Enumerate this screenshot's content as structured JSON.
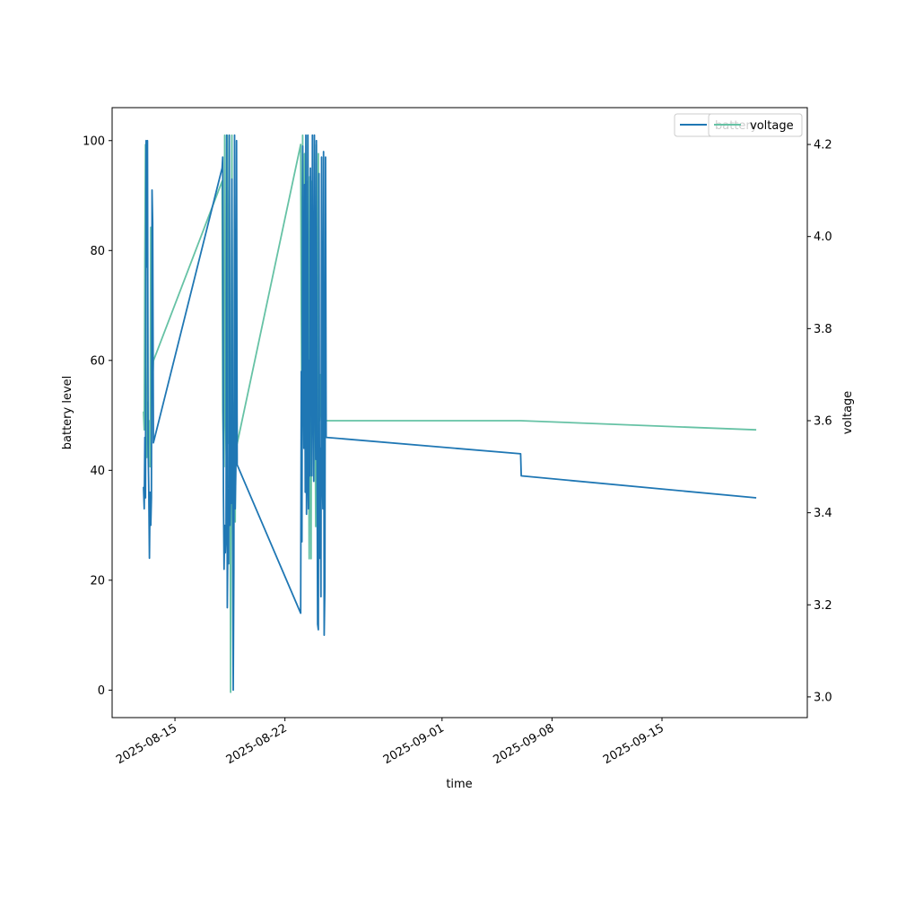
{
  "chart_data": {
    "type": "line",
    "xlabel": "time",
    "ylabel": "battery level",
    "y2label": "voltage",
    "xlim": [
      "2025-08-11T00:00",
      "2025-09-24T06:00"
    ],
    "ylim": [
      -5,
      106
    ],
    "y2lim": [
      2.955,
      4.28
    ],
    "x_ticks": [
      "2025-08-15",
      "2025-08-22",
      "2025-09-01",
      "2025-09-08",
      "2025-09-15"
    ],
    "y_ticks": [
      "0",
      "20",
      "40",
      "60",
      "80",
      "100"
    ],
    "y2_ticks": [
      "3.0",
      "3.2",
      "3.4",
      "3.6",
      "3.8",
      "4.0",
      "4.2"
    ],
    "legend": {
      "placement": "top-right",
      "entries": [
        "battery",
        "voltage"
      ]
    },
    "grid": false,
    "series": [
      {
        "name": "battery",
        "axis": "left",
        "color": "#1f77b4",
        "points": [
          [
            "2025-08-13T00:00",
            37
          ],
          [
            "2025-08-13T01:00",
            33
          ],
          [
            "2025-08-13T02:00",
            46
          ],
          [
            "2025-08-13T03:00",
            35
          ],
          [
            "2025-08-13T04:00",
            100
          ],
          [
            "2025-08-13T05:00",
            77
          ],
          [
            "2025-08-13T06:00",
            100
          ],
          [
            "2025-08-13T07:00",
            45
          ],
          [
            "2025-08-13T08:00",
            36
          ],
          [
            "2025-08-13T09:00",
            24
          ],
          [
            "2025-08-13T10:00",
            36
          ],
          [
            "2025-08-13T11:00",
            30
          ],
          [
            "2025-08-13T12:00",
            35
          ],
          [
            "2025-08-13T13:00",
            91
          ],
          [
            "2025-08-13T14:00",
            85
          ],
          [
            "2025-08-13T15:00",
            45
          ],
          [
            "2025-08-18T00:00",
            95
          ],
          [
            "2025-08-18T01:00",
            97
          ],
          [
            "2025-08-18T02:00",
            36
          ],
          [
            "2025-08-18T03:00",
            22
          ],
          [
            "2025-08-18T04:00",
            30
          ],
          [
            "2025-08-18T05:00",
            25
          ],
          [
            "2025-08-18T06:00",
            29
          ],
          [
            "2025-08-18T07:00",
            101
          ],
          [
            "2025-08-18T08:00",
            15
          ],
          [
            "2025-08-18T09:00",
            31
          ],
          [
            "2025-08-18T10:00",
            23
          ],
          [
            "2025-08-18T11:00",
            101
          ],
          [
            "2025-08-18T12:00",
            30
          ],
          [
            "2025-08-18T13:00",
            37
          ],
          [
            "2025-08-18T14:00",
            34
          ],
          [
            "2025-08-18T15:00",
            93
          ],
          [
            "2025-08-18T16:00",
            40
          ],
          [
            "2025-08-18T17:00",
            0
          ],
          [
            "2025-08-18T18:00",
            22
          ],
          [
            "2025-08-18T19:00",
            101
          ],
          [
            "2025-08-18T20:00",
            33
          ],
          [
            "2025-08-18T21:00",
            40
          ],
          [
            "2025-08-18T22:00",
            100
          ],
          [
            "2025-08-18T23:00",
            41
          ],
          [
            "2025-08-23T00:00",
            14
          ],
          [
            "2025-08-23T01:00",
            58
          ],
          [
            "2025-08-23T02:00",
            27
          ],
          [
            "2025-08-23T03:00",
            99
          ],
          [
            "2025-08-23T04:00",
            62
          ],
          [
            "2025-08-23T05:00",
            44
          ],
          [
            "2025-08-23T06:00",
            92
          ],
          [
            "2025-08-23T07:00",
            36
          ],
          [
            "2025-08-23T08:00",
            101
          ],
          [
            "2025-08-23T09:00",
            32
          ],
          [
            "2025-08-23T10:00",
            40
          ],
          [
            "2025-08-23T11:00",
            101
          ],
          [
            "2025-08-23T12:00",
            33
          ],
          [
            "2025-08-23T13:00",
            60
          ],
          [
            "2025-08-23T14:00",
            39
          ],
          [
            "2025-08-23T15:00",
            95
          ],
          [
            "2025-08-23T16:00",
            73
          ],
          [
            "2025-08-23T17:00",
            39
          ],
          [
            "2025-08-23T18:00",
            101
          ],
          [
            "2025-08-23T19:00",
            60
          ],
          [
            "2025-08-23T20:00",
            38
          ],
          [
            "2025-08-23T21:00",
            101
          ],
          [
            "2025-08-23T22:00",
            61
          ],
          [
            "2025-08-23T23:00",
            42
          ],
          [
            "2025-08-24T00:00",
            100
          ],
          [
            "2025-08-24T01:00",
            45
          ],
          [
            "2025-08-24T02:00",
            12
          ],
          [
            "2025-08-24T03:00",
            11
          ],
          [
            "2025-08-24T04:00",
            94
          ],
          [
            "2025-08-24T05:00",
            24
          ],
          [
            "2025-08-24T06:00",
            44
          ],
          [
            "2025-08-24T07:00",
            17
          ],
          [
            "2025-08-24T08:00",
            97
          ],
          [
            "2025-08-24T09:00",
            40
          ],
          [
            "2025-08-24T10:00",
            33
          ],
          [
            "2025-08-24T11:00",
            98
          ],
          [
            "2025-08-24T12:00",
            10
          ],
          [
            "2025-08-24T13:00",
            19
          ],
          [
            "2025-08-24T14:00",
            97
          ],
          [
            "2025-08-24T15:00",
            46
          ],
          [
            "2025-09-06T00:00",
            43
          ],
          [
            "2025-09-06T01:00",
            39
          ],
          [
            "2025-09-21T00:00",
            35
          ]
        ]
      },
      {
        "name": "voltage",
        "axis": "right",
        "color": "#66c2a5",
        "points": [
          [
            "2025-08-13T00:00",
            3.62
          ],
          [
            "2025-08-13T01:00",
            3.58
          ],
          [
            "2025-08-13T02:00",
            3.95
          ],
          [
            "2025-08-13T03:00",
            4.2
          ],
          [
            "2025-08-13T04:00",
            3.72
          ],
          [
            "2025-08-13T05:00",
            3.52
          ],
          [
            "2025-08-13T06:00",
            3.64
          ],
          [
            "2025-08-13T07:00",
            3.58
          ],
          [
            "2025-08-13T08:00",
            3.55
          ],
          [
            "2025-08-13T09:00",
            3.6
          ],
          [
            "2025-08-13T10:00",
            3.5
          ],
          [
            "2025-08-13T11:00",
            4.02
          ],
          [
            "2025-08-13T12:00",
            3.72
          ],
          [
            "2025-08-13T13:00",
            3.7
          ],
          [
            "2025-08-13T14:00",
            3.68
          ],
          [
            "2025-08-13T15:00",
            3.73
          ],
          [
            "2025-08-18T00:00",
            4.12
          ],
          [
            "2025-08-18T01:00",
            3.62
          ],
          [
            "2025-08-18T02:00",
            3.52
          ],
          [
            "2025-08-18T03:00",
            3.5
          ],
          [
            "2025-08-18T04:00",
            4.22
          ],
          [
            "2025-08-18T05:00",
            3.65
          ],
          [
            "2025-08-18T06:00",
            3.55
          ],
          [
            "2025-08-18T07:00",
            3.5
          ],
          [
            "2025-08-18T08:00",
            4.22
          ],
          [
            "2025-08-18T09:00",
            3.6
          ],
          [
            "2025-08-18T10:00",
            3.55
          ],
          [
            "2025-08-18T11:00",
            4.1
          ],
          [
            "2025-08-18T12:00",
            3.6
          ],
          [
            "2025-08-18T13:00",
            3.01
          ],
          [
            "2025-08-18T14:00",
            3.55
          ],
          [
            "2025-08-18T15:00",
            4.22
          ],
          [
            "2025-08-18T16:00",
            3.65
          ],
          [
            "2025-08-18T17:00",
            3.55
          ],
          [
            "2025-08-18T18:00",
            3.62
          ],
          [
            "2025-08-18T19:00",
            3.65
          ],
          [
            "2025-08-18T20:00",
            3.38
          ],
          [
            "2025-08-18T21:00",
            3.82
          ],
          [
            "2025-08-18T22:00",
            3.7
          ],
          [
            "2025-08-18T23:00",
            3.55
          ],
          [
            "2025-08-23T00:00",
            4.2
          ],
          [
            "2025-08-23T01:00",
            3.84
          ],
          [
            "2025-08-23T02:00",
            3.6
          ],
          [
            "2025-08-23T03:00",
            4.22
          ],
          [
            "2025-08-23T04:00",
            3.62
          ],
          [
            "2025-08-23T05:00",
            3.65
          ],
          [
            "2025-08-23T06:00",
            4.18
          ],
          [
            "2025-08-23T07:00",
            3.64
          ],
          [
            "2025-08-23T08:00",
            3.8
          ],
          [
            "2025-08-23T09:00",
            4.12
          ],
          [
            "2025-08-23T10:00",
            3.6
          ],
          [
            "2025-08-23T11:00",
            4.22
          ],
          [
            "2025-08-23T12:00",
            3.66
          ],
          [
            "2025-08-23T13:00",
            3.3
          ],
          [
            "2025-08-23T14:00",
            4.13
          ],
          [
            "2025-08-23T15:00",
            3.7
          ],
          [
            "2025-08-23T16:00",
            3.3
          ],
          [
            "2025-08-23T17:00",
            4.12
          ],
          [
            "2025-08-23T18:00",
            3.68
          ],
          [
            "2025-08-23T19:00",
            3.65
          ],
          [
            "2025-08-23T20:00",
            3.62
          ],
          [
            "2025-08-23T21:00",
            4.0
          ],
          [
            "2025-08-23T22:00",
            3.65
          ],
          [
            "2025-08-23T23:00",
            3.37
          ],
          [
            "2025-08-24T00:00",
            4.2
          ],
          [
            "2025-08-24T01:00",
            3.58
          ],
          [
            "2025-08-24T02:00",
            3.5
          ],
          [
            "2025-08-24T03:00",
            4.18
          ],
          [
            "2025-08-24T04:00",
            3.65
          ],
          [
            "2025-08-24T05:00",
            3.6
          ],
          [
            "2025-08-24T06:00",
            3.7
          ],
          [
            "2025-08-24T07:00",
            3.62
          ],
          [
            "2025-08-24T08:00",
            3.6
          ],
          [
            "2025-09-06T00:00",
            3.6
          ],
          [
            "2025-09-21T00:00",
            3.58
          ]
        ]
      }
    ]
  }
}
